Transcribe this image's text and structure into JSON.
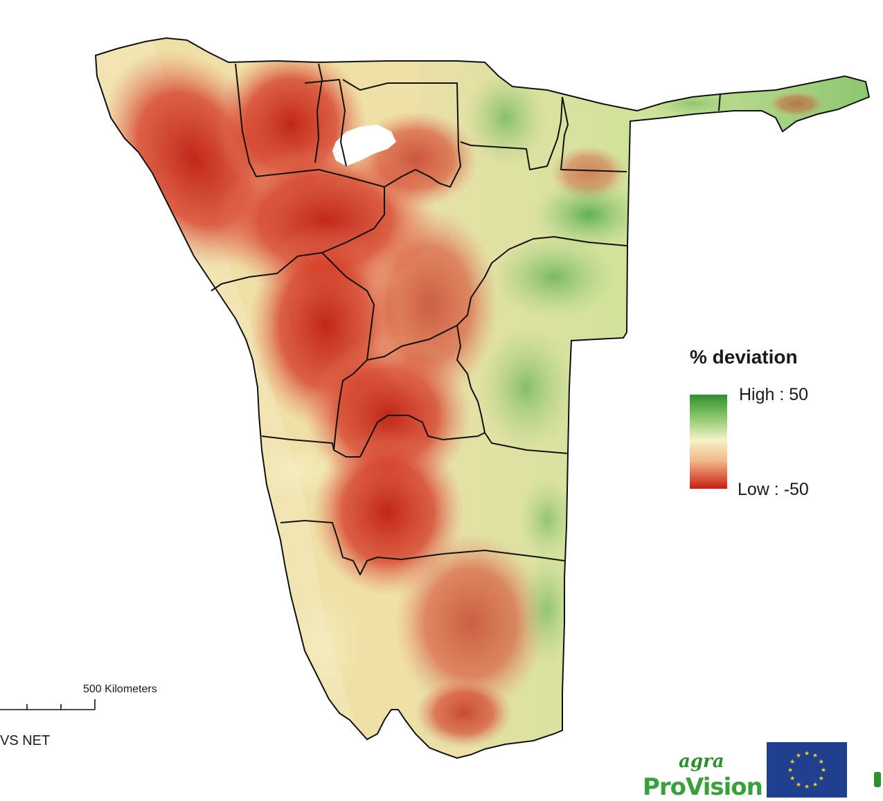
{
  "legend": {
    "title": "% deviation",
    "high_label": "High : 50",
    "low_label": "Low : -50",
    "colors": {
      "high": "#2f8f2f",
      "mid": "#f6f2c8",
      "low": "#c81e12"
    }
  },
  "scale_bar": {
    "label": "500 Kilometers"
  },
  "source": {
    "text": "VS NET"
  },
  "logos": {
    "agra_small": "agra",
    "agra_big": "ProVision",
    "eu_flag_icon": "eu-flag-icon"
  }
}
